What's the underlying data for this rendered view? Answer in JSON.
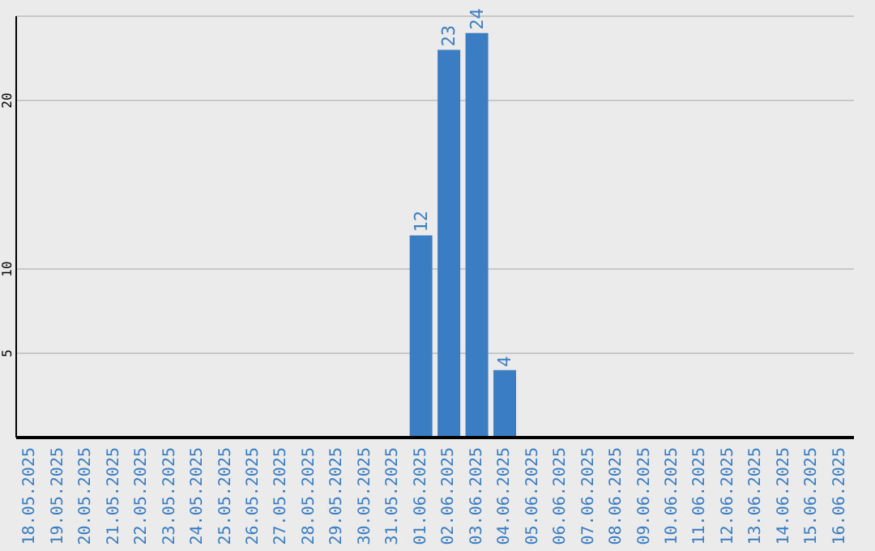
{
  "chart_data": {
    "type": "bar",
    "categories": [
      "18.05.2025",
      "19.05.2025",
      "20.05.2025",
      "21.05.2025",
      "22.05.2025",
      "23.05.2025",
      "24.05.2025",
      "25.05.2025",
      "26.05.2025",
      "27.05.2025",
      "28.05.2025",
      "29.05.2025",
      "30.05.2025",
      "31.05.2025",
      "01.06.2025",
      "02.06.2025",
      "03.06.2025",
      "04.06.2025",
      "05.06.2025",
      "06.06.2025",
      "07.06.2025",
      "08.06.2025",
      "09.06.2025",
      "10.06.2025",
      "11.06.2025",
      "12.06.2025",
      "13.06.2025",
      "14.06.2025",
      "15.06.2025",
      "16.06.2025"
    ],
    "values": [
      null,
      null,
      null,
      null,
      null,
      null,
      null,
      null,
      null,
      null,
      null,
      null,
      null,
      null,
      12,
      23,
      24,
      4,
      null,
      null,
      null,
      null,
      null,
      null,
      null,
      null,
      null,
      null,
      null,
      null
    ],
    "color": "#3a7dc2",
    "ylim": [
      0,
      25
    ],
    "yticks": [
      5,
      10,
      20
    ],
    "grid": "y",
    "data_labels": true
  }
}
